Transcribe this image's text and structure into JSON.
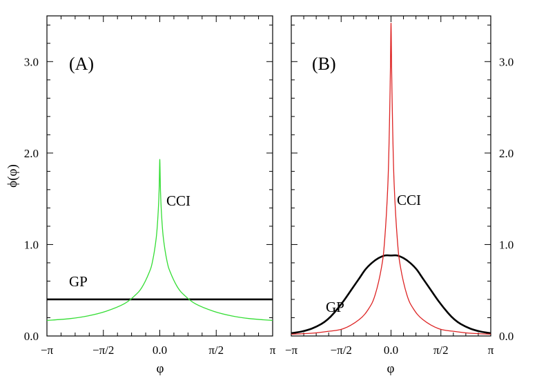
{
  "chart_data": [
    {
      "type": "line",
      "panel_label": "(A)",
      "xlabel": "φ",
      "ylabel": "ϕ(φ)",
      "xlim": [
        -3.14159,
        3.14159
      ],
      "ylim": [
        0,
        3.5
      ],
      "x_ticks": [
        {
          "value": -3.14159,
          "label": "−π"
        },
        {
          "value": -1.5708,
          "label": "−π/2"
        },
        {
          "value": 0,
          "label": "0.0"
        },
        {
          "value": 1.5708,
          "label": "π/2"
        },
        {
          "value": 3.14159,
          "label": "π"
        }
      ],
      "y_ticks": [
        {
          "value": 0,
          "label": "0.0"
        },
        {
          "value": 1,
          "label": "1.0"
        },
        {
          "value": 2,
          "label": "2.0"
        },
        {
          "value": 3,
          "label": "3.0"
        }
      ],
      "series": [
        {
          "name": "GP",
          "color": "#000000",
          "x": [
            -3.14159,
            -1.5708,
            0,
            1.5708,
            3.14159
          ],
          "y": [
            0.4,
            0.4,
            0.4,
            0.4,
            0.4
          ]
        },
        {
          "name": "CCI",
          "color": "#33dd33",
          "x": [
            -3.14159,
            -2.5,
            -2.0,
            -1.5,
            -1.0,
            -0.7,
            -0.5,
            -0.3,
            -0.2,
            -0.1,
            -0.05,
            -0.02,
            0,
            0.02,
            0.05,
            0.1,
            0.2,
            0.3,
            0.5,
            0.7,
            1.0,
            1.5,
            2.0,
            2.5,
            3.14159
          ],
          "y": [
            0.17,
            0.19,
            0.22,
            0.27,
            0.35,
            0.44,
            0.53,
            0.69,
            0.82,
            1.07,
            1.32,
            1.58,
            1.93,
            1.58,
            1.32,
            1.07,
            0.82,
            0.69,
            0.53,
            0.44,
            0.35,
            0.27,
            0.22,
            0.19,
            0.17
          ]
        }
      ],
      "annotations": [
        "CCI",
        "GP"
      ]
    },
    {
      "type": "line",
      "panel_label": "(B)",
      "xlabel": "φ",
      "ylabel": "",
      "xlim": [
        -3.14159,
        3.14159
      ],
      "ylim": [
        0,
        3.5
      ],
      "x_ticks": [
        {
          "value": -3.14159,
          "label": "−π"
        },
        {
          "value": -1.5708,
          "label": "−π/2"
        },
        {
          "value": 0,
          "label": "0.0"
        },
        {
          "value": 1.5708,
          "label": "π/2"
        },
        {
          "value": 3.14159,
          "label": "π"
        }
      ],
      "y_ticks": [
        {
          "value": 0,
          "label": "0.0"
        },
        {
          "value": 1,
          "label": "1.0"
        },
        {
          "value": 2,
          "label": "2.0"
        },
        {
          "value": 3,
          "label": "3.0"
        }
      ],
      "series": [
        {
          "name": "GP",
          "color": "#000000",
          "x": [
            -3.14159,
            -2.8,
            -2.5,
            -2.2,
            -2.0,
            -1.8,
            -1.5,
            -1.2,
            -1.0,
            -0.8,
            -0.6,
            -0.4,
            -0.2,
            0,
            0.2,
            0.4,
            0.6,
            0.8,
            1.0,
            1.2,
            1.5,
            1.8,
            2.0,
            2.2,
            2.5,
            2.8,
            3.14159
          ],
          "y": [
            0.03,
            0.05,
            0.08,
            0.13,
            0.18,
            0.25,
            0.38,
            0.53,
            0.63,
            0.73,
            0.8,
            0.85,
            0.88,
            0.88,
            0.88,
            0.85,
            0.8,
            0.73,
            0.63,
            0.53,
            0.38,
            0.25,
            0.18,
            0.13,
            0.08,
            0.05,
            0.03
          ]
        },
        {
          "name": "CCI",
          "color": "#dd2222",
          "x": [
            -3.14159,
            -2.5,
            -2.0,
            -1.5,
            -1.0,
            -0.7,
            -0.5,
            -0.3,
            -0.2,
            -0.1,
            -0.05,
            -0.02,
            0,
            0.02,
            0.05,
            0.1,
            0.2,
            0.3,
            0.5,
            0.7,
            1.0,
            1.5,
            2.0,
            2.5,
            3.14159
          ],
          "y": [
            0.02,
            0.03,
            0.05,
            0.08,
            0.18,
            0.3,
            0.45,
            0.75,
            1.05,
            1.65,
            2.3,
            2.9,
            3.42,
            2.9,
            2.3,
            1.65,
            1.05,
            0.75,
            0.45,
            0.3,
            0.18,
            0.08,
            0.05,
            0.03,
            0.02
          ]
        }
      ],
      "annotations": [
        "CCI",
        "GP"
      ]
    }
  ]
}
